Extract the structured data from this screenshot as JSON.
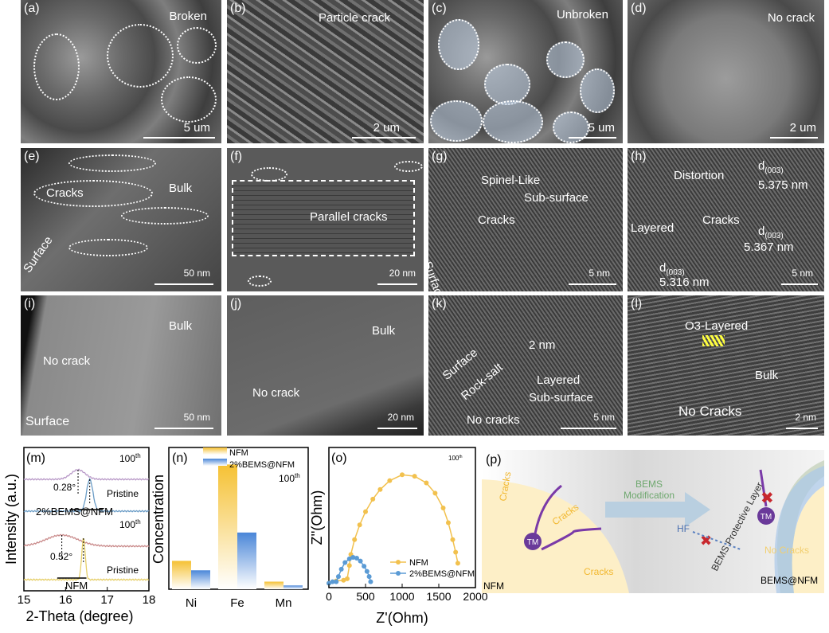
{
  "panels": {
    "a": {
      "label": "(a)",
      "note": "Broken",
      "scale": "5 um"
    },
    "b": {
      "label": "(b)",
      "note": "Particle crack",
      "scale": "2 um"
    },
    "c": {
      "label": "(c)",
      "note": "Unbroken",
      "scale": "5 um"
    },
    "d": {
      "label": "(d)",
      "note": "No crack",
      "scale": "2 um"
    },
    "e": {
      "label": "(e)",
      "cracks": "Cracks",
      "bulk": "Bulk",
      "surface": "Surface",
      "scale": "50 nm"
    },
    "f": {
      "label": "(f)",
      "note": "Parallel cracks",
      "scale": "20 nm"
    },
    "g": {
      "label": "(g)",
      "spinel": "Spinel-Like",
      "sub": "Sub-surface",
      "cracks": "Cracks",
      "surface": "Surface",
      "scale": "5 nm"
    },
    "h": {
      "label": "(h)",
      "distortion": "Distortion",
      "cracks": "Cracks",
      "layered": "Layered",
      "d": "d",
      "sub": "(003)",
      "d1": "5.375 nm",
      "d2": "5.367 nm",
      "d3": "5.316 nm",
      "scale": "5 nm"
    },
    "i": {
      "label": "(i)",
      "bulk": "Bulk",
      "note": "No crack",
      "surface": "Surface",
      "scale": "50 nm"
    },
    "j": {
      "label": "(j)",
      "bulk": "Bulk",
      "note": "No crack",
      "scale": "20 nm"
    },
    "k": {
      "label": "(k)",
      "surface": "Surface",
      "rocksalt": "Rock-salt",
      "width": "2 nm",
      "layered": "Layered",
      "sub": "Sub-surface",
      "note": "No cracks",
      "scale": "5 nm"
    },
    "l": {
      "label": "(l)",
      "o3": "O3-Layered",
      "bulk": "Bulk",
      "note": "No Cracks",
      "scale": "2 nm"
    }
  },
  "chart_data": [
    {
      "type": "line",
      "label": "(m)",
      "xlabel": "2-Theta (degree)",
      "ylabel": "Intensity (a.u.)",
      "xlim": [
        15,
        18
      ],
      "xticks": [
        "15",
        "16",
        "17",
        "18"
      ],
      "series": [
        {
          "group": "2%BEMS@NFM",
          "state": "100th",
          "peak": 16.3,
          "fwhm": 0.4,
          "color": "#b99ac8"
        },
        {
          "group": "2%BEMS@NFM",
          "state": "Pristine",
          "peak": 16.58,
          "fwhm": 0.18,
          "color": "#6a9cc6"
        },
        {
          "group": "NFM",
          "state": "100th",
          "peak": 15.91,
          "fwhm": 0.9,
          "color": "#c98a8a"
        },
        {
          "group": "NFM",
          "state": "Pristine",
          "peak": 16.43,
          "fwhm": 0.1,
          "color": "#e6cf6a"
        }
      ],
      "annotations": {
        "shift1": "0.28°",
        "shift2": "0.52°",
        "g1": "2%BEMS@NFM",
        "g2": "NFM",
        "s100": "100",
        "sup": "th",
        "pristine": "Pristine"
      }
    },
    {
      "type": "bar",
      "label": "(n)",
      "ylabel": "Concentration",
      "categories": [
        "Ni",
        "Fe",
        "Mn"
      ],
      "series": [
        {
          "name": "NFM",
          "values": [
            0.15,
            0.66,
            0.04
          ],
          "color": "#f5c133"
        },
        {
          "name": "2%BEMS@NFM",
          "values": [
            0.1,
            0.3,
            0.02
          ],
          "color": "#4a86d8"
        }
      ],
      "note": "100",
      "sup": "th",
      "ylim": [
        0,
        0.75
      ]
    },
    {
      "type": "scatter",
      "label": "(o)",
      "xlabel": "Z'(Ohm)",
      "ylabel": "Z''(Ohm)",
      "xlim": [
        0,
        2000
      ],
      "ylim": [
        0,
        1900
      ],
      "xticks": [
        "0",
        "500",
        "1000",
        "1500",
        "2000"
      ],
      "note": "100",
      "sup": "th",
      "series": [
        {
          "name": "NFM",
          "color": "#f2c14e",
          "x": [
            0,
            100,
            200,
            250,
            280,
            300,
            350,
            420,
            500,
            600,
            700,
            830,
            1000,
            1170,
            1330,
            1450,
            1560,
            1630,
            1690,
            1730,
            1760
          ],
          "y": [
            60,
            90,
            100,
            120,
            300,
            450,
            650,
            850,
            1030,
            1200,
            1330,
            1450,
            1530,
            1510,
            1420,
            1280,
            1080,
            880,
            650,
            480,
            330
          ]
        },
        {
          "name": "2%BEMS@NFM",
          "color": "#5b9bd5",
          "x": [
            0,
            50,
            100,
            130,
            170,
            220,
            280,
            330,
            380,
            430,
            480,
            520,
            550,
            570
          ],
          "y": [
            60,
            80,
            80,
            150,
            250,
            340,
            390,
            410,
            400,
            360,
            290,
            220,
            150,
            80
          ]
        }
      ]
    }
  ],
  "schematic": {
    "label": "(p)",
    "cracks": "Cracks",
    "tm": "TM",
    "bems": "BEMS",
    "mod": "Modification",
    "hf": "HF",
    "layer": "BEMS Protective Layer",
    "nocracks": "No Cracks",
    "nfm": "NFM",
    "bemsnfm": "BEMS@NFM"
  }
}
